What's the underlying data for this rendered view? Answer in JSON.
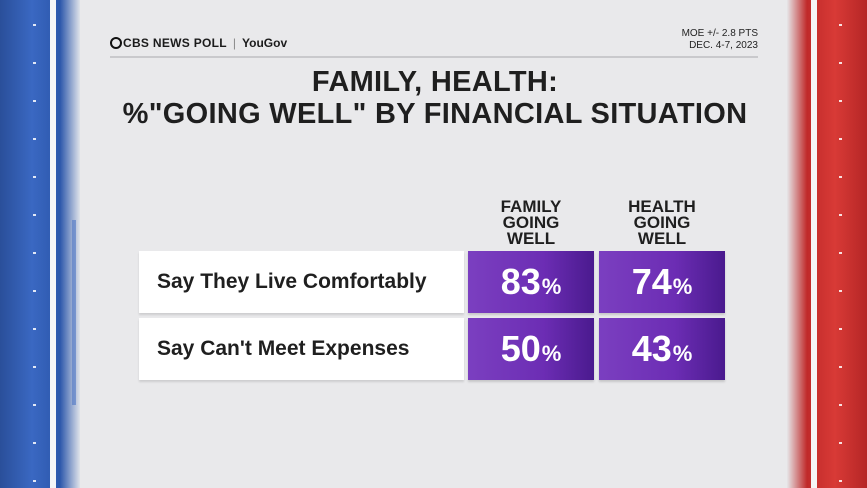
{
  "header": {
    "brand_cbs": "CBS NEWS POLL",
    "brand_separator": "|",
    "brand_yougov": "YouGov",
    "moe": "MOE +/- 2.8 PTS",
    "dates": "DEC. 4-7, 2023"
  },
  "colors": {
    "cell_purple": "#6c2db4",
    "left_bar_blue": "#2c57ab",
    "right_bar_red": "#c02a2a"
  },
  "chart_data": {
    "type": "table",
    "title_line1": "FAMILY, HEALTH:",
    "title_line2": "%\"GOING WELL\" BY FINANCIAL SITUATION",
    "columns": [
      "FAMILY\nGOING\nWELL",
      "HEALTH\nGOING\nWELL"
    ],
    "rows": [
      {
        "label": "Say They Live Comfortably",
        "values": [
          83,
          74
        ]
      },
      {
        "label": "Say Can't Meet Expenses",
        "values": [
          50,
          43
        ]
      }
    ],
    "unit": "%"
  }
}
